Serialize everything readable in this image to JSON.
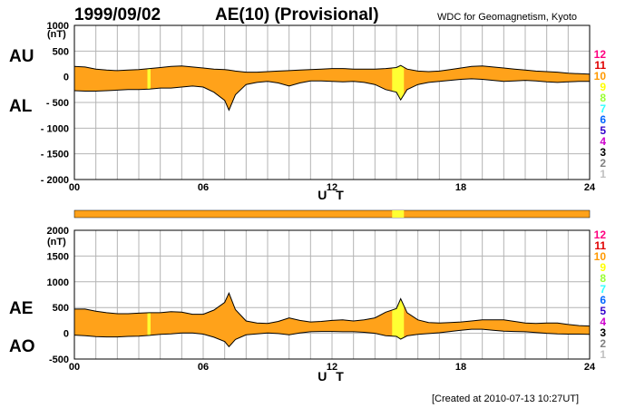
{
  "header": {
    "date": "1999/09/02",
    "title": "AE(10) (Provisional)",
    "source": "WDC for Geomagnetism, Kyoto"
  },
  "footer": {
    "created": "[Created at 2010-07-13 10:27UT]"
  },
  "legend": {
    "labels": [
      "12",
      "11",
      "10",
      "9",
      "8",
      "7",
      "6",
      "5",
      "4",
      "3",
      "2",
      "1"
    ],
    "colors": [
      "#ff0080",
      "#e00000",
      "#ff9900",
      "#ffff00",
      "#99ff33",
      "#33ffff",
      "#0066ff",
      "#3300cc",
      "#cc00cc",
      "#000000",
      "#808080",
      "#c0c0c0"
    ]
  },
  "colors": {
    "fill": "#ffa21a",
    "fill_highlight": "#ffff33",
    "grid": "#b4b4b4",
    "line": "#000000"
  },
  "chart_data": [
    {
      "type": "area",
      "panel": "AU/AL",
      "unit_label": "(nT)",
      "xlabel": "U T",
      "x_ticks": [
        "00",
        "06",
        "12",
        "18",
        "24"
      ],
      "y_ticks": [
        "1000",
        "500",
        "0",
        "- 500",
        "- 1000",
        "- 1500",
        "- 2000"
      ],
      "ylim": [
        -2000,
        1000
      ],
      "xlim": [
        0,
        24
      ],
      "grid": true,
      "upper_label": "AU",
      "lower_label": "AL",
      "x": [
        0,
        0.5,
        1,
        1.5,
        2,
        2.5,
        3,
        3.5,
        4,
        4.5,
        5,
        5.5,
        6,
        6.5,
        7,
        7.2,
        7.5,
        8,
        8.5,
        9,
        9.5,
        10,
        10.5,
        11,
        11.5,
        12,
        12.5,
        13,
        13.5,
        14,
        14.5,
        15,
        15.2,
        15.5,
        16,
        16.5,
        17,
        17.5,
        18,
        18.5,
        19,
        19.5,
        20,
        20.5,
        21,
        21.5,
        22,
        22.5,
        23,
        23.5,
        24
      ],
      "series": [
        {
          "name": "AU",
          "values": [
            200,
            190,
            150,
            130,
            120,
            130,
            140,
            160,
            180,
            200,
            210,
            190,
            170,
            150,
            140,
            130,
            110,
            90,
            90,
            100,
            110,
            120,
            130,
            140,
            150,
            160,
            160,
            150,
            150,
            150,
            160,
            180,
            220,
            150,
            110,
            100,
            110,
            140,
            170,
            200,
            210,
            190,
            170,
            150,
            130,
            110,
            100,
            90,
            70,
            60,
            50
          ]
        },
        {
          "name": "AL",
          "values": [
            -270,
            -280,
            -280,
            -270,
            -260,
            -250,
            -250,
            -240,
            -220,
            -220,
            -200,
            -180,
            -200,
            -300,
            -460,
            -650,
            -350,
            -150,
            -110,
            -90,
            -120,
            -180,
            -120,
            -80,
            -80,
            -90,
            -100,
            -90,
            -110,
            -150,
            -250,
            -300,
            -450,
            -250,
            -150,
            -110,
            -90,
            -70,
            -50,
            -40,
            -50,
            -70,
            -90,
            -80,
            -70,
            -80,
            -100,
            -110,
            -100,
            -90,
            -90
          ]
        }
      ]
    },
    {
      "type": "area",
      "panel": "AE/AO",
      "unit_label": "(nT)",
      "xlabel": "U T",
      "x_ticks": [
        "00",
        "06",
        "12",
        "18",
        "24"
      ],
      "y_ticks": [
        "2000",
        "1500",
        "1000",
        "500",
        "0",
        "-500"
      ],
      "ylim": [
        -500,
        2000
      ],
      "xlim": [
        0,
        24
      ],
      "grid": true,
      "upper_label": "AE",
      "lower_label": "AO",
      "x": [
        0,
        0.5,
        1,
        1.5,
        2,
        2.5,
        3,
        3.5,
        4,
        4.5,
        5,
        5.5,
        6,
        6.5,
        7,
        7.2,
        7.5,
        8,
        8.5,
        9,
        9.5,
        10,
        10.5,
        11,
        11.5,
        12,
        12.5,
        13,
        13.5,
        14,
        14.5,
        15,
        15.2,
        15.5,
        16,
        16.5,
        17,
        17.5,
        18,
        18.5,
        19,
        19.5,
        20,
        20.5,
        21,
        21.5,
        22,
        22.5,
        23,
        23.5,
        24
      ],
      "series": [
        {
          "name": "AE",
          "values": [
            470,
            470,
            430,
            400,
            380,
            380,
            390,
            400,
            400,
            420,
            410,
            370,
            370,
            450,
            600,
            780,
            460,
            240,
            200,
            190,
            230,
            300,
            250,
            220,
            230,
            250,
            260,
            240,
            260,
            300,
            410,
            480,
            670,
            400,
            260,
            210,
            200,
            210,
            220,
            240,
            260,
            260,
            260,
            230,
            200,
            190,
            200,
            200,
            170,
            150,
            140
          ]
        },
        {
          "name": "AO",
          "values": [
            -35,
            -45,
            -65,
            -70,
            -70,
            -60,
            -55,
            -40,
            -20,
            -10,
            5,
            5,
            -15,
            -75,
            -160,
            -260,
            -120,
            -30,
            -10,
            5,
            -5,
            -30,
            5,
            30,
            35,
            35,
            30,
            30,
            20,
            0,
            -45,
            -60,
            -115,
            -50,
            -20,
            -5,
            10,
            35,
            60,
            80,
            80,
            60,
            40,
            35,
            30,
            15,
            0,
            -10,
            -15,
            -15,
            -20
          ]
        }
      ]
    }
  ]
}
